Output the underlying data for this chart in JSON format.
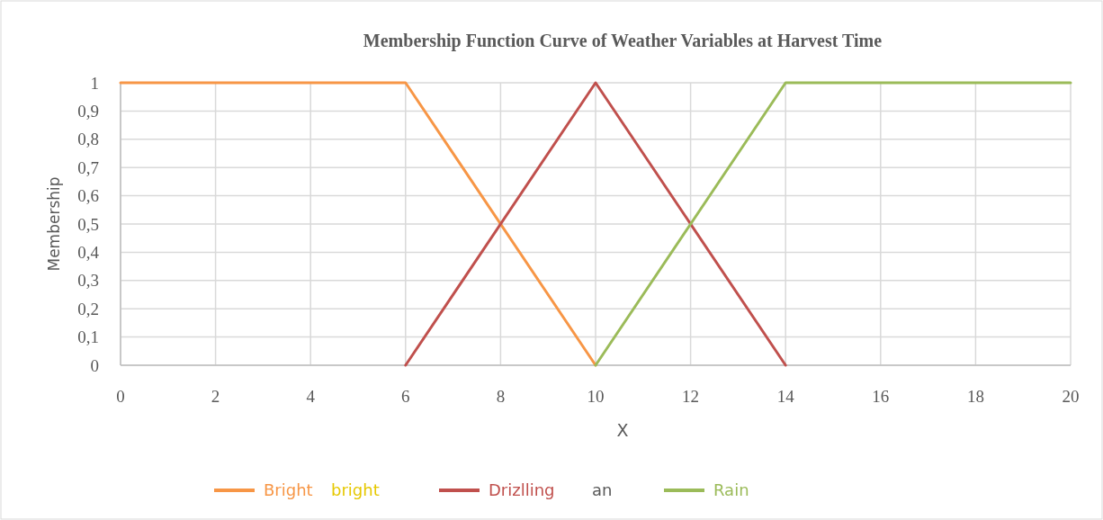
{
  "chart_data": {
    "type": "line",
    "title": "Membership Function Curve of Weather Variables at Harvest Time",
    "xlabel": "X",
    "ylabel": "Membership",
    "xlim": [
      0,
      20
    ],
    "xticks": [
      0,
      2,
      4,
      6,
      8,
      10,
      12,
      14,
      16,
      18,
      20
    ],
    "ylim": [
      0,
      1
    ],
    "yticks": [
      0,
      {
        "value": 0.1,
        "label": "0,1"
      },
      {
        "value": 0.2,
        "label": "0,2"
      },
      {
        "value": 0.3,
        "label": "0,3"
      },
      {
        "value": 0.4,
        "label": "0,4"
      },
      {
        "value": 0.5,
        "label": "0,5"
      },
      {
        "value": 0.6,
        "label": "0,6"
      },
      {
        "value": 0.7,
        "label": "0,7"
      },
      {
        "value": 0.8,
        "label": "0,8"
      },
      {
        "value": 0.9,
        "label": "0,9"
      },
      1
    ],
    "grid": true,
    "legend": "bottom",
    "marker": "none",
    "line_style": "solid",
    "series": [
      {
        "name": "Bright",
        "color": "#f79646",
        "x": [
          0,
          6,
          10
        ],
        "values": [
          1,
          1,
          0
        ]
      },
      {
        "name": "Drizlling",
        "color": "#c0504d",
        "x": [
          6,
          10,
          14
        ],
        "values": [
          0,
          1,
          0
        ]
      },
      {
        "name": "Rain",
        "color": "#9bbb59",
        "x": [
          10,
          14,
          20
        ],
        "values": [
          0,
          1,
          1
        ]
      }
    ],
    "annotations": [
      "bright",
      "an"
    ]
  }
}
